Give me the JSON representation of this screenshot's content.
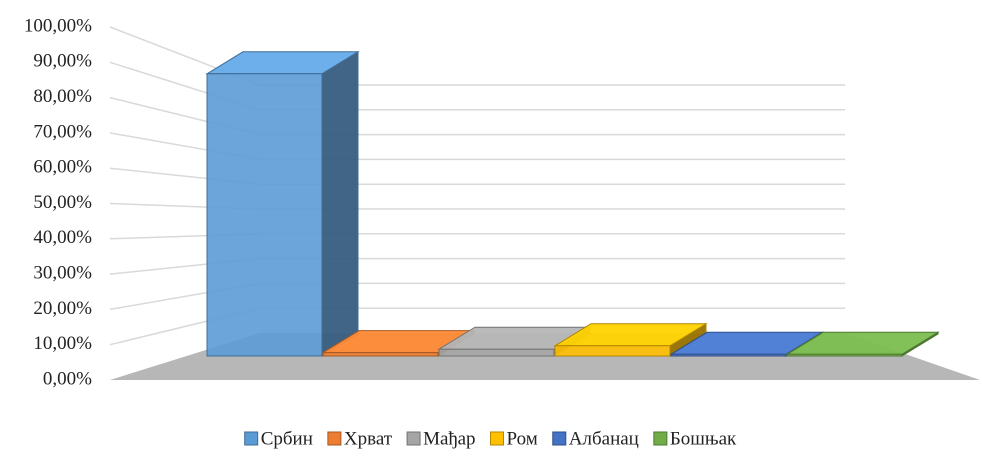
{
  "chart_data": {
    "type": "bar3d",
    "categories": [
      "Србин",
      "Хрват",
      "Мађар",
      "Ром",
      "Албанац",
      "Бошњак"
    ],
    "series": [
      {
        "name": null,
        "values": [
          83,
          1,
          2,
          3,
          0.5,
          0.5
        ]
      }
    ],
    "colors": [
      "#5b9bd5",
      "#ed7d31",
      "#a5a5a5",
      "#ffc000",
      "#4472c4",
      "#70ad47"
    ],
    "ylim": [
      0,
      100
    ],
    "yticks": [
      {
        "value": 0,
        "label": "0,00%"
      },
      {
        "value": 10,
        "label": "10,00%"
      },
      {
        "value": 20,
        "label": "20,00%"
      },
      {
        "value": 30,
        "label": "30,00%"
      },
      {
        "value": 40,
        "label": "40,00%"
      },
      {
        "value": 50,
        "label": "50,00%"
      },
      {
        "value": 60,
        "label": "60,00%"
      },
      {
        "value": 70,
        "label": "70,00%"
      },
      {
        "value": 80,
        "label": "80,00%"
      },
      {
        "value": 90,
        "label": "90,00%"
      },
      {
        "value": 100,
        "label": "100,00%"
      }
    ],
    "grid": true,
    "legend": "bottom"
  }
}
